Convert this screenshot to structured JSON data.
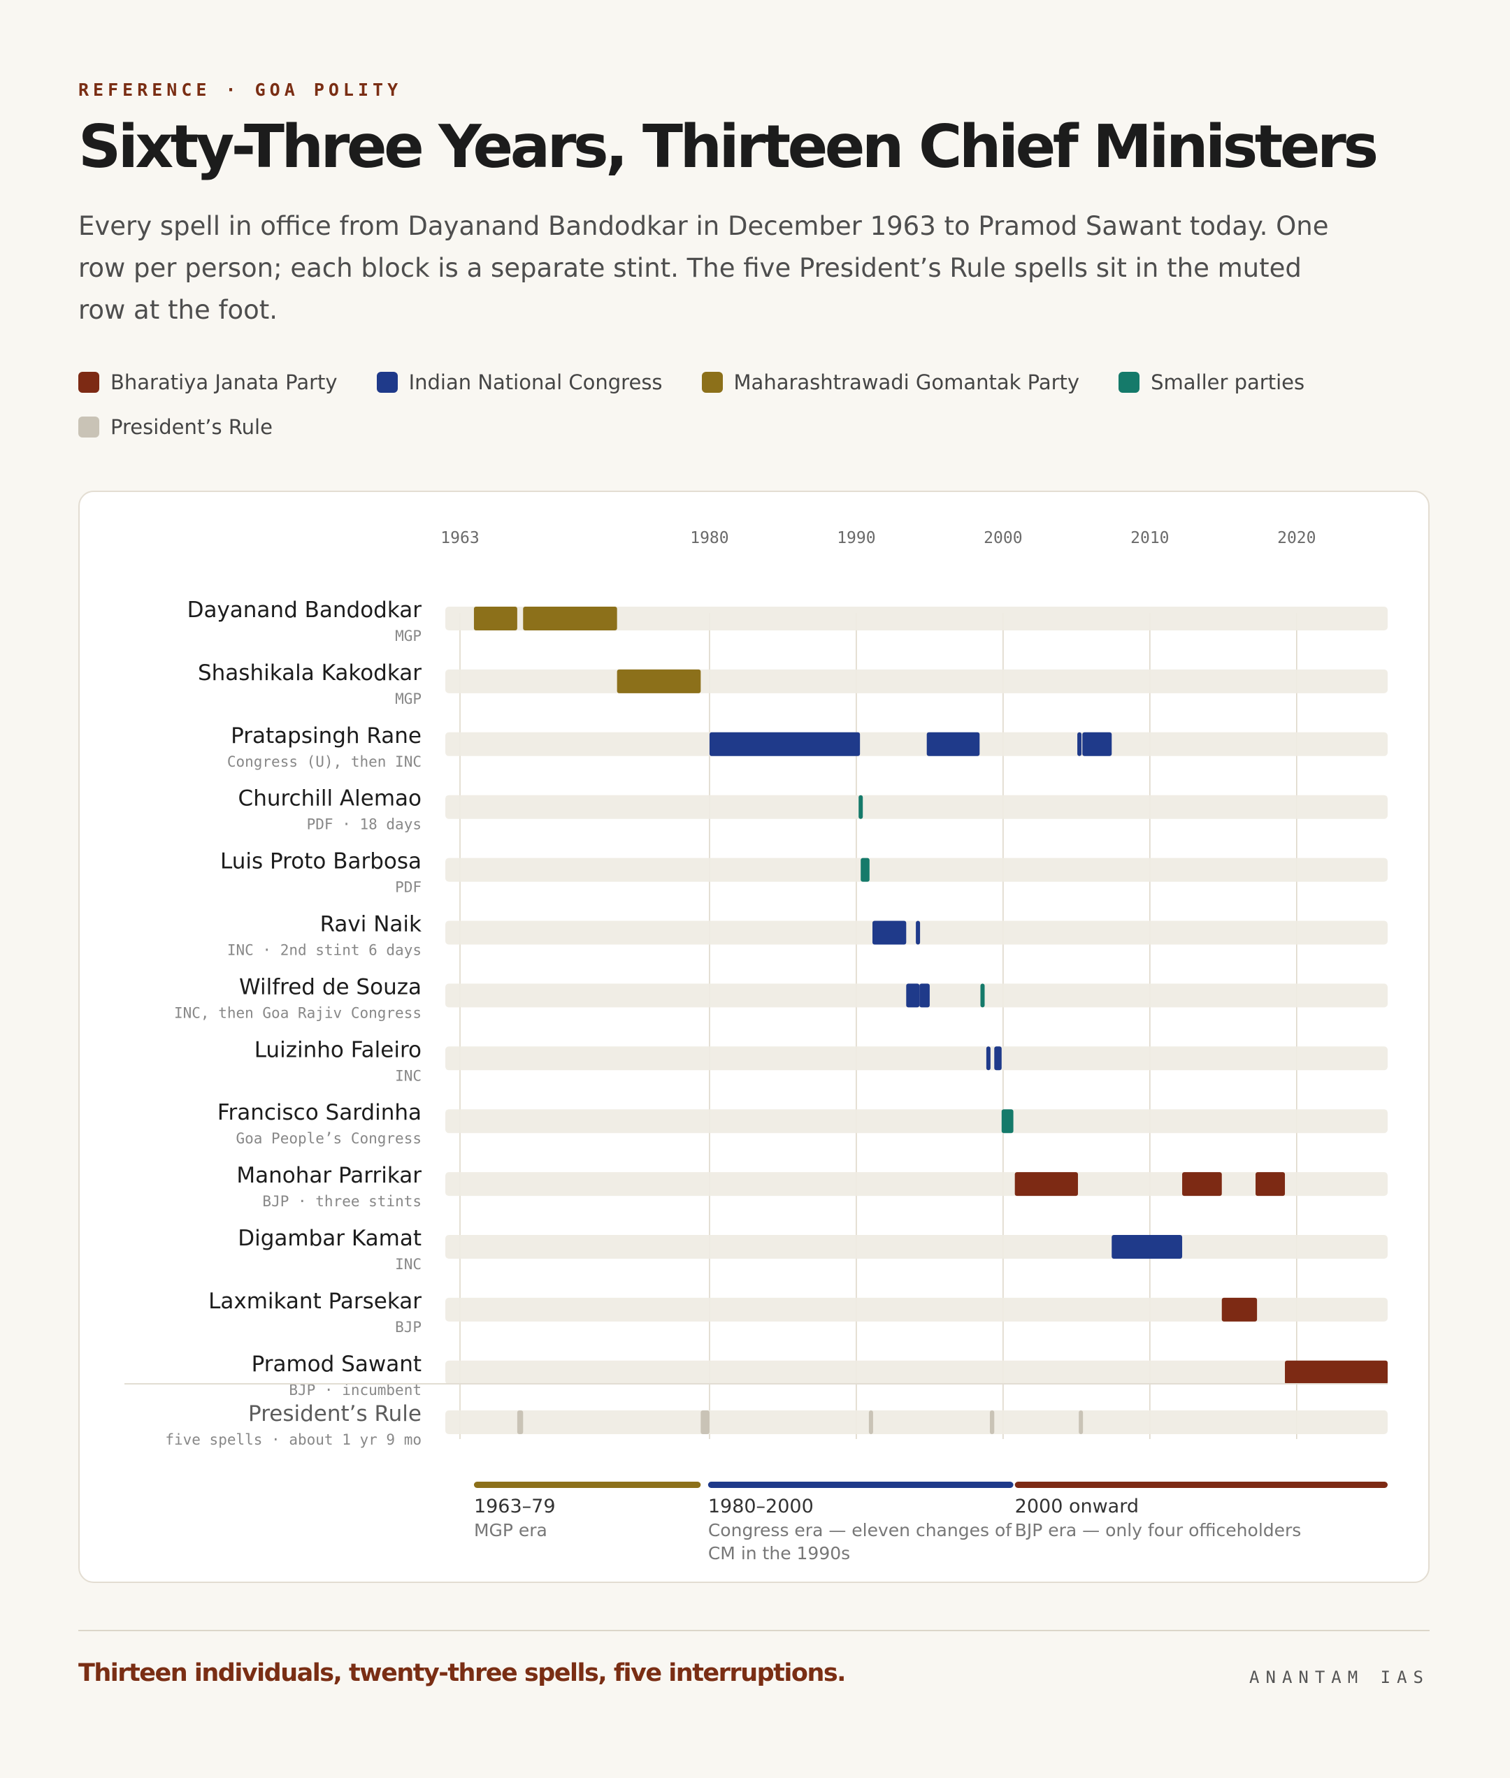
{
  "header": {
    "kicker": "REFERENCE · GOA POLITY",
    "title": "Sixty-Three Years, Thirteen Chief Ministers",
    "subtitle": "Every spell in office from Dayanand Bandodkar in December 1963 to Pramod Sawant today. One row per person; each block is a separate stint. The five President’s Rule spells sit in the muted row at the foot."
  },
  "legend": [
    {
      "label": "Bharatiya Janata Party",
      "color": "#7d2a14"
    },
    {
      "label": "Indian National Congress",
      "color": "#1f3a8a"
    },
    {
      "label": "Maharashtrawadi Gomantak Party",
      "color": "#8c701a"
    },
    {
      "label": "Smaller parties",
      "color": "#157a6a"
    },
    {
      "label": "President’s Rule",
      "color": "#c9c3b6"
    }
  ],
  "chart_data": {
    "type": "timeline",
    "x_ticks": [
      1963,
      1980,
      1990,
      2000,
      2010,
      2020
    ],
    "x_range": [
      1962.0,
      2026.2
    ],
    "party_colors": {
      "BJP": "#7d2a14",
      "INC": "#1f3a8a",
      "MGP": "#8c701a",
      "Smaller": "#157a6a",
      "PR": "#c9c3b6"
    },
    "rows": [
      {
        "name": "Dayanand Bandodkar",
        "party": "MGP",
        "spells": [
          {
            "start": 1963.95,
            "end": 1966.9,
            "party": "MGP"
          },
          {
            "start": 1967.3,
            "end": 1973.7,
            "party": "MGP"
          }
        ]
      },
      {
        "name": "Shashikala Kakodkar",
        "party": "MGP",
        "spells": [
          {
            "start": 1973.7,
            "end": 1979.4,
            "party": "MGP"
          }
        ]
      },
      {
        "name": "Pratapsingh Rane",
        "party": "Congress (U), then INC",
        "spells": [
          {
            "start": 1980.0,
            "end": 1990.25,
            "party": "INC"
          },
          {
            "start": 1994.8,
            "end": 1998.4,
            "party": "INC"
          },
          {
            "start": 2005.1,
            "end": 2005.3,
            "party": "INC"
          },
          {
            "start": 2005.4,
            "end": 2007.4,
            "party": "INC"
          }
        ]
      },
      {
        "name": "Churchill Alemao",
        "party": "PDF · 18 days",
        "spells": [
          {
            "start": 1990.25,
            "end": 1990.35,
            "party": "Smaller"
          }
        ]
      },
      {
        "name": "Luis Proto Barbosa",
        "party": "PDF",
        "spells": [
          {
            "start": 1990.3,
            "end": 1990.9,
            "party": "Smaller"
          }
        ]
      },
      {
        "name": "Ravi Naik",
        "party": "INC · 2nd stint 6 days",
        "spells": [
          {
            "start": 1991.1,
            "end": 1993.4,
            "party": "INC"
          },
          {
            "start": 1994.1,
            "end": 1994.3,
            "party": "INC"
          }
        ]
      },
      {
        "name": "Wilfred de Souza",
        "party": "INC, then Goa Rajiv Congress",
        "spells": [
          {
            "start": 1993.4,
            "end": 1994.3,
            "party": "INC"
          },
          {
            "start": 1994.3,
            "end": 1995.0,
            "party": "INC"
          },
          {
            "start": 1998.5,
            "end": 1998.7,
            "party": "Smaller"
          }
        ]
      },
      {
        "name": "Luizinho Faleiro",
        "party": "INC",
        "spells": [
          {
            "start": 1998.9,
            "end": 1999.1,
            "party": "INC"
          },
          {
            "start": 1999.4,
            "end": 1999.9,
            "party": "INC"
          }
        ]
      },
      {
        "name": "Francisco Sardinha",
        "party": "Goa People’s Congress",
        "spells": [
          {
            "start": 1999.9,
            "end": 2000.7,
            "party": "Smaller"
          }
        ]
      },
      {
        "name": "Manohar Parrikar",
        "party": "BJP · three stints",
        "spells": [
          {
            "start": 2000.8,
            "end": 2005.1,
            "party": "BJP"
          },
          {
            "start": 2012.2,
            "end": 2014.9,
            "party": "BJP"
          },
          {
            "start": 2017.2,
            "end": 2019.2,
            "party": "BJP"
          }
        ]
      },
      {
        "name": "Digambar Kamat",
        "party": "INC",
        "spells": [
          {
            "start": 2007.4,
            "end": 2012.2,
            "party": "INC"
          }
        ]
      },
      {
        "name": "Laxmikant Parsekar",
        "party": "BJP",
        "spells": [
          {
            "start": 2014.9,
            "end": 2017.3,
            "party": "BJP"
          }
        ]
      },
      {
        "name": "Pramod Sawant",
        "party": "BJP · incumbent",
        "spells": [
          {
            "start": 2019.2,
            "end": 2026.7,
            "party": "BJP"
          }
        ]
      }
    ],
    "presidents_rule": {
      "name": "President’s Rule",
      "note": "five spells · about 1 yr 9 mo",
      "spells": [
        {
          "start": 1966.9,
          "end": 1967.3
        },
        {
          "start": 1979.4,
          "end": 1980.0
        },
        {
          "start": 1990.9,
          "end": 1991.1
        },
        {
          "start": 1999.1,
          "end": 1999.4
        },
        {
          "start": 2005.2,
          "end": 2005.4
        }
      ]
    },
    "eras": [
      {
        "start": 1963.95,
        "end": 1979.4,
        "color": "#8c701a",
        "range": "1963–79",
        "desc": [
          "MGP era"
        ]
      },
      {
        "start": 1979.9,
        "end": 2000.7,
        "color": "#1f3a8a",
        "range": "1980–2000",
        "desc": [
          "Congress era — eleven changes of",
          "CM in the 1990s"
        ]
      },
      {
        "start": 2000.8,
        "end": 2026.5,
        "color": "#7d2a14",
        "range": "2000 onward",
        "desc": [
          "BJP era — only four officeholders"
        ]
      }
    ]
  },
  "footer": {
    "note": "Thirteen individuals, twenty-three spells, five interruptions.",
    "brand": "ANANTAM IAS"
  }
}
